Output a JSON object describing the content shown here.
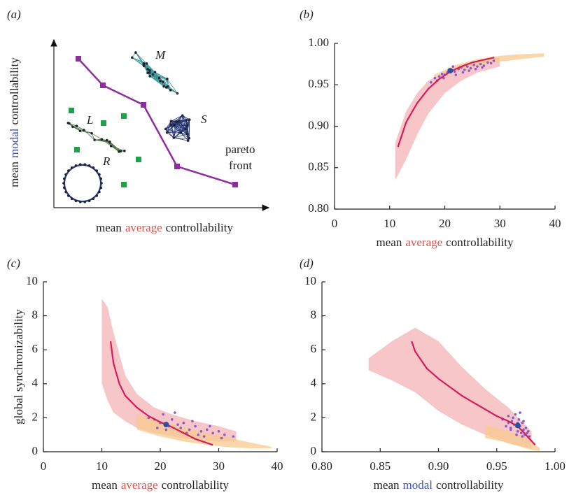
{
  "chart_data": [
    {
      "type": "schematic",
      "label": "(a)",
      "xlabel": [
        {
          "text": "mean"
        },
        {
          "text": "average",
          "color": "#d9534f"
        },
        {
          "text": "controllability"
        }
      ],
      "ylabel": [
        {
          "text": "mean"
        },
        {
          "text": "modal",
          "color": "#3f51b5"
        },
        {
          "text": "controllability"
        }
      ],
      "annotations": [
        {
          "text": "M"
        },
        {
          "text": "S"
        },
        {
          "text": "L"
        },
        {
          "text": "R"
        },
        {
          "text": "pareto",
          "color": "#8e2d9e"
        },
        {
          "text": "front",
          "color": "#8e2d9e"
        }
      ]
    },
    {
      "type": "scatter",
      "label": "(b)",
      "xlabel": [
        {
          "text": "mean"
        },
        {
          "text": "average",
          "color": "#d9534f"
        },
        {
          "text": "controllability"
        }
      ],
      "xlim": [
        0,
        40
      ],
      "ylim": [
        0.8,
        1.0
      ],
      "xticks": [
        0,
        10,
        20,
        30,
        40
      ],
      "yticks": [
        {
          "value": 0.8,
          "label": "0.80"
        },
        {
          "value": 0.85,
          "label": "0.85"
        },
        {
          "value": 0.9,
          "label": "0.90"
        },
        {
          "value": 0.95,
          "label": "0.95"
        },
        {
          "value": 1.0,
          "label": "1.00"
        }
      ],
      "series": [
        {
          "kind": "band",
          "color": "#f3b3b6",
          "x": [
            11,
            13,
            15,
            17,
            20,
            23,
            26,
            30
          ],
          "upper": [
            0.88,
            0.918,
            0.94,
            0.955,
            0.966,
            0.974,
            0.979,
            0.983
          ],
          "lower": [
            0.835,
            0.86,
            0.89,
            0.915,
            0.94,
            0.955,
            0.965,
            0.972
          ]
        },
        {
          "kind": "band",
          "color": "#f8c98f",
          "x": [
            18,
            22,
            26,
            30,
            34,
            38
          ],
          "upper": [
            0.962,
            0.974,
            0.981,
            0.985,
            0.987,
            0.988
          ],
          "lower": [
            0.955,
            0.966,
            0.973,
            0.978,
            0.981,
            0.984
          ]
        },
        {
          "kind": "scatter",
          "color": "#8a5cc7",
          "x": [
            17.5,
            18.2,
            19,
            19.5,
            20,
            20.5,
            21.2,
            21.8,
            22.5,
            23,
            23.6,
            24.1,
            24.7,
            25.3,
            25.9,
            26.5,
            27.1,
            27.8,
            28.4,
            19.8,
            22,
            23.3,
            24.4,
            25.6,
            26.8,
            18.6,
            21.5,
            28.9
          ],
          "y": [
            0.953,
            0.958,
            0.96,
            0.963,
            0.962,
            0.965,
            0.968,
            0.966,
            0.969,
            0.971,
            0.968,
            0.972,
            0.97,
            0.974,
            0.972,
            0.975,
            0.973,
            0.977,
            0.976,
            0.958,
            0.962,
            0.965,
            0.967,
            0.969,
            0.971,
            0.955,
            0.972,
            0.979
          ]
        },
        {
          "kind": "line",
          "color": "#d81b5a",
          "x": [
            11.5,
            13,
            15,
            17,
            19,
            21,
            23,
            25,
            27,
            29
          ],
          "y": [
            0.875,
            0.905,
            0.928,
            0.945,
            0.957,
            0.966,
            0.972,
            0.977,
            0.98,
            0.983
          ]
        },
        {
          "kind": "scatter",
          "color": "#2f4fa0",
          "x": [
            21
          ],
          "y": [
            0.967
          ]
        }
      ]
    },
    {
      "type": "scatter",
      "label": "(c)",
      "xlabel": [
        {
          "text": "mean"
        },
        {
          "text": "average",
          "color": "#d9534f"
        },
        {
          "text": "controllability"
        }
      ],
      "ylabel": [
        {
          "text": "global synchronizability"
        }
      ],
      "xlim": [
        0,
        40
      ],
      "ylim": [
        0,
        10
      ],
      "xticks": [
        0,
        10,
        20,
        30,
        40
      ],
      "yticks": [
        0,
        2,
        4,
        6,
        8,
        10
      ],
      "series": [
        {
          "kind": "band",
          "color": "#f3b3b6",
          "x": [
            10,
            11,
            12,
            14,
            16,
            19,
            22,
            26,
            30,
            33
          ],
          "upper": [
            9,
            8.5,
            7,
            4.5,
            3.4,
            2.6,
            2.2,
            1.8,
            1.5,
            1.2
          ],
          "lower": [
            4,
            3,
            2.3,
            1.8,
            1.4,
            1.1,
            0.9,
            0.7,
            0.6,
            0.6
          ]
        },
        {
          "kind": "band",
          "color": "#f8c98f",
          "x": [
            16,
            20,
            24,
            28,
            32,
            36,
            39
          ],
          "upper": [
            2.2,
            1.8,
            1.4,
            1.1,
            0.8,
            0.5,
            0.3
          ],
          "lower": [
            1.3,
            0.9,
            0.6,
            0.4,
            0.25,
            0.2,
            0.2
          ]
        },
        {
          "kind": "scatter",
          "color": "#8a5cc7",
          "x": [
            18,
            19,
            20,
            20.5,
            21.5,
            22,
            23,
            24,
            25,
            26,
            27,
            28,
            29,
            30,
            31,
            32.5,
            19.5,
            21,
            22.5,
            24.5,
            26.5,
            28.5,
            23.5,
            25.5,
            27.5,
            30.5
          ],
          "y": [
            2.0,
            1.9,
            1.7,
            2.2,
            1.5,
            1.9,
            1.6,
            1.7,
            1.3,
            1.5,
            1.2,
            1.3,
            1.1,
            1.2,
            1.0,
            0.9,
            1.4,
            1.3,
            2.3,
            1.1,
            1.0,
            1.5,
            1.4,
            1.8,
            0.9,
            0.8
          ]
        },
        {
          "kind": "line",
          "color": "#d81b5a",
          "x": [
            11.5,
            12,
            13,
            14,
            16,
            18,
            20,
            22,
            24,
            26,
            29
          ],
          "y": [
            6.5,
            5.2,
            4.0,
            3.3,
            2.6,
            2.1,
            1.75,
            1.45,
            1.1,
            0.75,
            0.4
          ]
        },
        {
          "kind": "scatter",
          "color": "#2f4fa0",
          "x": [
            21
          ],
          "y": [
            1.6
          ]
        }
      ]
    },
    {
      "type": "scatter",
      "label": "(d)",
      "xlabel": [
        {
          "text": "mean"
        },
        {
          "text": "modal",
          "color": "#3f51b5"
        },
        {
          "text": "controllability"
        }
      ],
      "xlim": [
        0.8,
        1.0
      ],
      "ylim": [
        0,
        10
      ],
      "xticks": [
        {
          "value": 0.8,
          "label": "0.80"
        },
        {
          "value": 0.85,
          "label": "0.85"
        },
        {
          "value": 0.9,
          "label": "0.90"
        },
        {
          "value": 0.95,
          "label": "0.95"
        },
        {
          "value": 1.0,
          "label": "1.00"
        }
      ],
      "yticks": [
        0,
        2,
        4,
        6,
        8,
        10
      ],
      "series": [
        {
          "kind": "band",
          "color": "#f3b3b6",
          "x": [
            0.84,
            0.86,
            0.88,
            0.9,
            0.92,
            0.94,
            0.96,
            0.98
          ],
          "upper": [
            5.5,
            6.5,
            7.3,
            6.5,
            5.0,
            3.7,
            2.6,
            1.2
          ],
          "lower": [
            4.8,
            4.2,
            3.5,
            2.4,
            1.6,
            1.0,
            0.5,
            0.2
          ]
        },
        {
          "kind": "band",
          "color": "#f8c98f",
          "x": [
            0.94,
            0.955,
            0.97,
            0.98,
            0.987
          ],
          "upper": [
            1.6,
            1.3,
            1.0,
            0.6,
            0.2
          ],
          "lower": [
            0.8,
            0.6,
            0.3,
            0.1,
            0.05
          ]
        },
        {
          "kind": "scatter",
          "color": "#8a5cc7",
          "x": [
            0.955,
            0.958,
            0.96,
            0.962,
            0.963,
            0.965,
            0.966,
            0.968,
            0.969,
            0.97,
            0.971,
            0.972,
            0.973,
            0.974,
            0.975,
            0.977,
            0.978,
            0.96,
            0.964,
            0.967,
            0.97,
            0.973,
            0.976,
            0.962,
            0.968,
            0.972
          ],
          "y": [
            1.9,
            1.5,
            2.1,
            1.3,
            1.8,
            1.6,
            2.2,
            1.2,
            1.9,
            1.5,
            1.1,
            1.7,
            1.3,
            1.0,
            1.4,
            1.2,
            0.9,
            1.7,
            2.0,
            1.0,
            2.3,
            1.8,
            1.1,
            1.4,
            1.7,
            0.9
          ]
        },
        {
          "kind": "line",
          "color": "#d81b5a",
          "x": [
            0.877,
            0.88,
            0.89,
            0.9,
            0.91,
            0.92,
            0.93,
            0.94,
            0.95,
            0.96,
            0.968,
            0.975,
            0.983
          ],
          "y": [
            6.5,
            5.9,
            4.9,
            4.3,
            3.8,
            3.3,
            2.9,
            2.5,
            2.1,
            1.8,
            1.5,
            1.0,
            0.4
          ]
        },
        {
          "kind": "scatter",
          "color": "#2f4fa0",
          "x": [
            0.968
          ],
          "y": [
            1.55
          ]
        }
      ]
    }
  ]
}
